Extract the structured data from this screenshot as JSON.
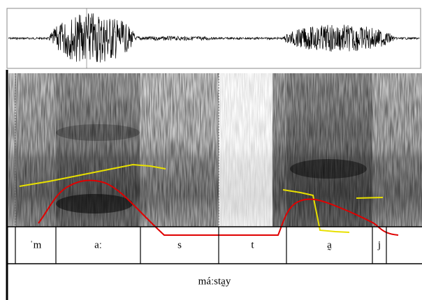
{
  "segments": [
    "ˈm",
    "aː",
    "s",
    "t",
    "a̰",
    "j"
  ],
  "word": "máːsta̰y"
}
